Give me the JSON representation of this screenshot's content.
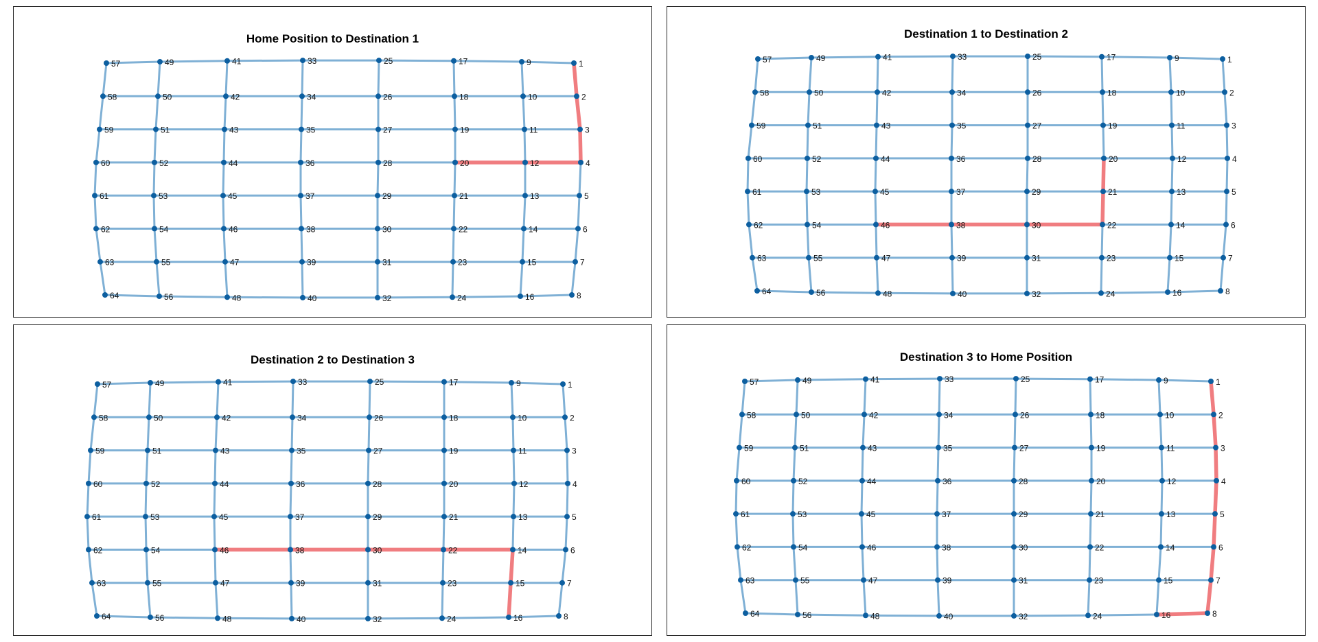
{
  "figure": {
    "colors": {
      "edge": "#7fb0d5",
      "path": "#f07d80",
      "node": "#0d5fa0"
    },
    "panels": [
      {
        "title": "Home Position to Destination 1",
        "route": [
          1,
          2,
          3,
          4,
          12,
          20
        ]
      },
      {
        "title": "Destination 1 to Destination 2",
        "route": [
          20,
          21,
          22,
          30,
          38,
          46
        ]
      },
      {
        "title": "Destination 2 to Destination 3",
        "route": [
          46,
          38,
          30,
          22,
          14,
          15,
          16
        ]
      },
      {
        "title": "Destination 3 to Home Position",
        "route": [
          16,
          8,
          7,
          6,
          5,
          4,
          3,
          2,
          1
        ]
      }
    ]
  }
}
